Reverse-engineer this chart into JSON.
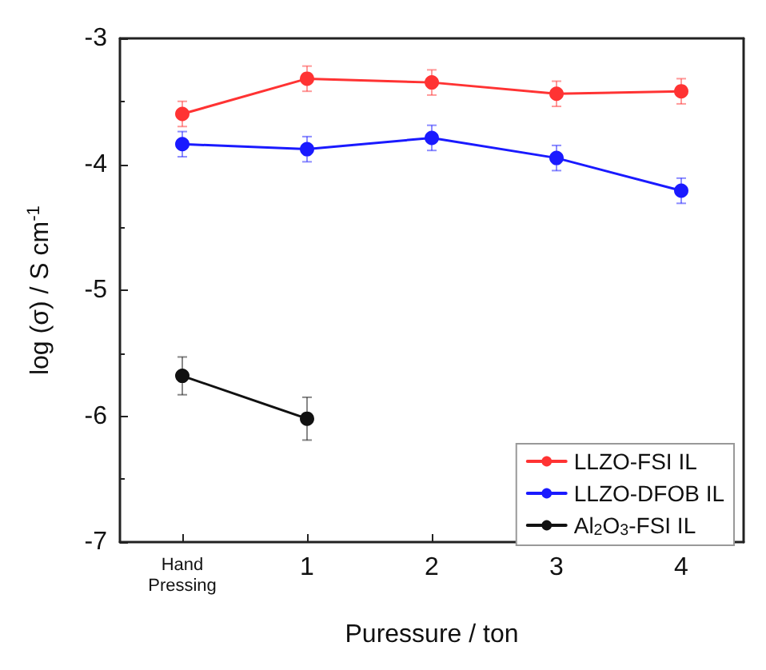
{
  "chart_data": {
    "type": "line",
    "xlabel": "Puressure / ton",
    "ylabel": "log (σ) / S cm$^{-1}$",
    "categories": [
      "Hand\nPressing",
      "1",
      "2",
      "3",
      "4"
    ],
    "series": [
      {
        "name": "LLZO-FSI IL",
        "color": "#ff3333",
        "values": [
          -3.6,
          -3.32,
          -3.35,
          -3.44,
          -3.42
        ],
        "errors": [
          0.1,
          0.1,
          0.1,
          0.1,
          0.1
        ]
      },
      {
        "name": "LLZO-DFOB IL",
        "color": "#1a1aff",
        "values": [
          -3.84,
          -3.88,
          -3.79,
          -3.95,
          -4.21
        ],
        "errors": [
          0.1,
          0.1,
          0.1,
          0.1,
          0.1
        ]
      },
      {
        "name": "Al$_{2}$O$_{3}$-FSI IL",
        "color": "#111111",
        "values": [
          -5.68,
          -6.02,
          null,
          null,
          null
        ],
        "errors": [
          0.15,
          0.17,
          null,
          null,
          null
        ]
      }
    ],
    "ylim": [
      -7,
      -3
    ],
    "yticks": [
      -7,
      -6,
      -5,
      -4,
      -3
    ],
    "grid": false,
    "legend": "bottom right",
    "marker": "circle",
    "line_style": "solid"
  }
}
